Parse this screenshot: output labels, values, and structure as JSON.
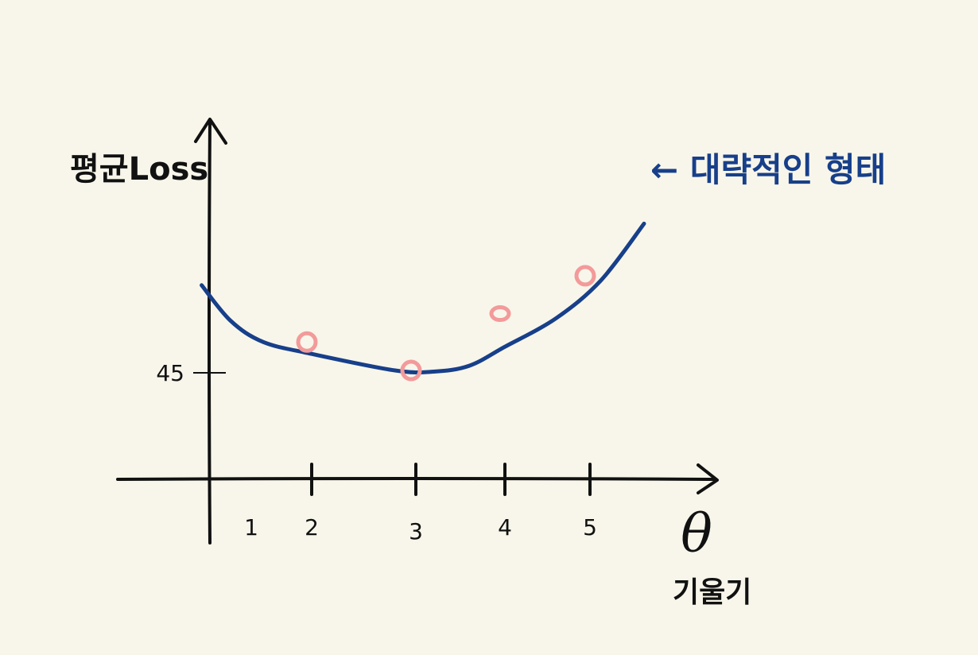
{
  "chart_data": {
    "type": "scatter",
    "y_axis_title": "평균Loss",
    "x_axis_symbol": "θ",
    "x_axis_title": "기울기",
    "x_ticks": [
      "1",
      "2",
      "3",
      "4",
      "5"
    ],
    "y_tick": "45",
    "annotation": "← 대략적인 형태",
    "points": [
      {
        "x": 2,
        "y": 58
      },
      {
        "x": 3,
        "y": 46
      },
      {
        "x": 4,
        "y": 70
      },
      {
        "x": 5,
        "y": 86
      }
    ],
    "curve": [
      {
        "x": -0.2,
        "y": 82
      },
      {
        "x": 0.5,
        "y": 67
      },
      {
        "x": 1.2,
        "y": 58
      },
      {
        "x": 2.0,
        "y": 53
      },
      {
        "x": 2.8,
        "y": 46
      },
      {
        "x": 3.2,
        "y": 45.5
      },
      {
        "x": 3.6,
        "y": 48
      },
      {
        "x": 4.0,
        "y": 56
      },
      {
        "x": 4.6,
        "y": 68
      },
      {
        "x": 5.2,
        "y": 84
      },
      {
        "x": 6.0,
        "y": 108
      }
    ],
    "colors": {
      "curve": "#173f8a",
      "points": "#f39a9a",
      "axes": "#111111",
      "background": "#f8f6ea"
    }
  }
}
